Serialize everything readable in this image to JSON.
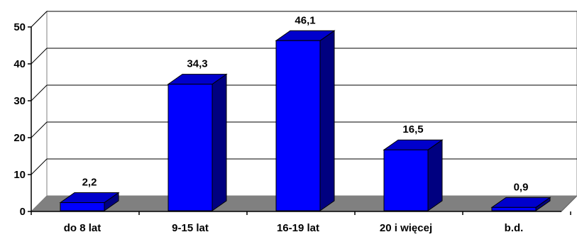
{
  "chart_data": {
    "type": "bar",
    "title": "",
    "xlabel": "",
    "ylabel": "",
    "categories": [
      "do 8 lat",
      "9-15 lat",
      "16-19 lat",
      "20 i więcej",
      "b.d."
    ],
    "values": [
      2.2,
      34.3,
      46.1,
      16.5,
      0.9
    ],
    "data_labels": [
      "2,2",
      "34,3",
      "46,1",
      "16,5",
      "0,9"
    ],
    "ylim": [
      0,
      50
    ],
    "yticks": [
      0,
      10,
      20,
      30,
      40,
      50
    ],
    "grid": true,
    "legend": "none",
    "style": "3d-column",
    "colors": {
      "bar_front": "#0000ff",
      "bar_top": "#0000cc",
      "bar_side": "#000080",
      "floor": "#808080",
      "back_wall": "#ffffff",
      "grid": "#000000",
      "axis": "#808080"
    }
  }
}
